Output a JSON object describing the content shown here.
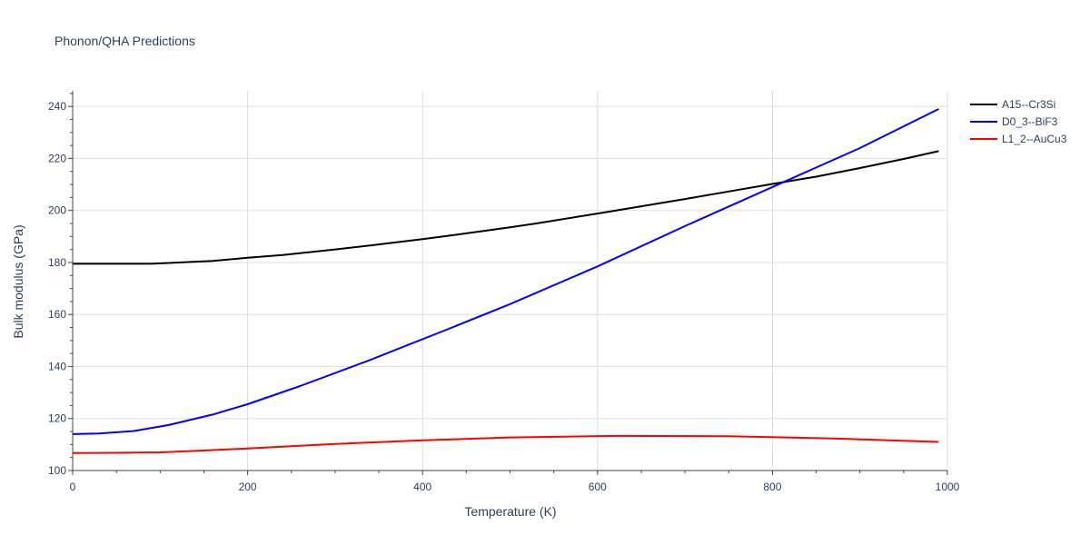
{
  "chart_data": {
    "type": "line",
    "title": "Phonon/QHA Predictions",
    "xlabel": "Temperature (K)",
    "ylabel": "Bulk modulus (GPa)",
    "xlim": [
      0,
      1000
    ],
    "ylim": [
      100,
      246
    ],
    "xticks": [
      0,
      200,
      400,
      600,
      800,
      1000
    ],
    "yticks": [
      100,
      120,
      140,
      160,
      180,
      200,
      220,
      240
    ],
    "grid": true,
    "legend_position": "top-right",
    "series": [
      {
        "name": "A15--Cr3Si",
        "color": "#000000",
        "x": [
          0,
          30,
          60,
          90,
          110,
          160,
          200,
          240,
          300,
          340,
          400,
          430,
          500,
          530,
          600,
          650,
          700,
          750,
          800,
          850,
          900,
          950,
          990
        ],
        "y": [
          179.5,
          179.5,
          179.5,
          179.5,
          179.8,
          180.6,
          181.8,
          182.9,
          185.0,
          186.5,
          189.0,
          190.3,
          193.5,
          195.0,
          198.8,
          201.6,
          204.4,
          207.3,
          210.2,
          213.0,
          216.3,
          219.8,
          222.8
        ]
      },
      {
        "name": "D0_3--BiF3",
        "color": "#0000ff",
        "x": [
          0,
          30,
          70,
          110,
          160,
          200,
          260,
          340,
          400,
          430,
          500,
          600,
          700,
          800,
          900,
          990
        ],
        "y": [
          114.0,
          114.2,
          115.2,
          117.5,
          121.5,
          125.5,
          132.5,
          142.5,
          150.5,
          154.5,
          164.0,
          178.5,
          194.0,
          209.0,
          224.0,
          239.0
        ]
      },
      {
        "name": "L1_2--AuCu3",
        "color": "#ff0000",
        "x": [
          0,
          50,
          100,
          150,
          200,
          300,
          400,
          500,
          620,
          750,
          870,
          990
        ],
        "y": [
          106.7,
          106.8,
          107.0,
          107.7,
          108.5,
          110.2,
          111.6,
          112.7,
          113.3,
          113.2,
          112.3,
          111.0
        ]
      }
    ]
  }
}
